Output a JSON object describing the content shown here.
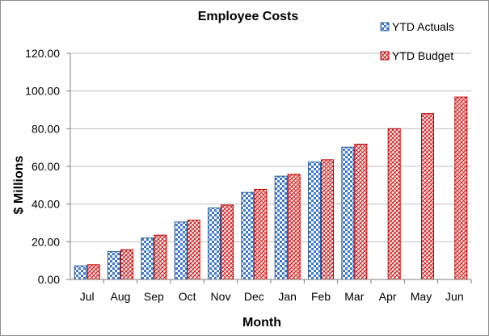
{
  "chart_data": {
    "type": "bar",
    "title": "Employee Costs",
    "xlabel": "Month",
    "ylabel": "$ Millions",
    "categories": [
      "Jul",
      "Aug",
      "Sep",
      "Oct",
      "Nov",
      "Dec",
      "Jan",
      "Feb",
      "Mar",
      "Apr",
      "May",
      "Jun"
    ],
    "series": [
      {
        "name": "YTD Actuals",
        "values": [
          7.2,
          14.8,
          22.0,
          30.5,
          38.0,
          46.2,
          54.8,
          62.3,
          70.2,
          null,
          null,
          null
        ]
      },
      {
        "name": "YTD Budget",
        "values": [
          7.8,
          15.8,
          23.5,
          31.5,
          39.5,
          47.8,
          55.8,
          63.5,
          71.8,
          80.0,
          88.0,
          96.8
        ]
      }
    ],
    "ylim": [
      0,
      120
    ],
    "yticks": [
      0,
      20,
      40,
      60,
      80,
      100,
      120
    ],
    "ytick_labels": [
      "0.00",
      "20.00",
      "40.00",
      "60.00",
      "80.00",
      "100.00",
      "120.00"
    ],
    "grid": true,
    "legend_position": "top-right",
    "colors": {
      "actuals_fill": "#3f78c8",
      "actuals_alt": "#ffffff",
      "actuals_border": "#2f5f9e",
      "budget_fill": "#d02020",
      "budget_alt": "#ffffff",
      "budget_border": "#c00000",
      "gridline": "#bfbfbf",
      "axis": "#7f7f7f"
    }
  }
}
